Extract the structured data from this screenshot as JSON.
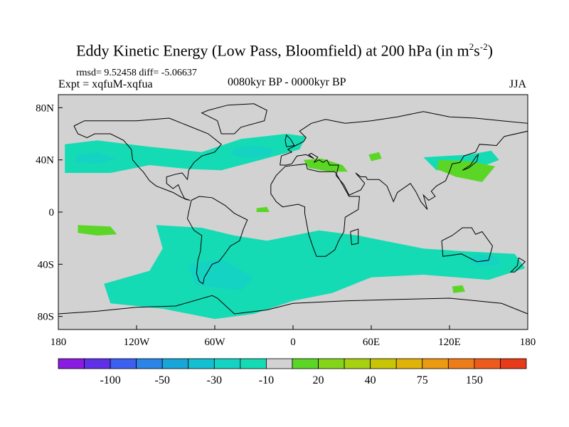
{
  "title": {
    "main": "Eddy Kinetic Energy (Low Pass, Bloomfield) at 200 hPa (in m",
    "unit_m_exp": "2",
    "unit_s": "s",
    "unit_s_exp": "-2",
    "close": ")"
  },
  "stats_line": "rmsd= 9.52458 diff= -5.06637",
  "experiment": "Expt = xqfuM-xqfua",
  "period": "0080kyr BP - 0000kyr BP",
  "season": "JJA",
  "chart_data": {
    "type": "heatmap",
    "projection": "cylindrical equidistant",
    "x_ticks": [
      "180",
      "120W",
      "60W",
      "0",
      "60E",
      "120E",
      "180"
    ],
    "x_tick_values": [
      -180,
      -120,
      -60,
      0,
      60,
      120,
      180
    ],
    "y_ticks": [
      "80N",
      "40N",
      "0",
      "40S",
      "80S"
    ],
    "y_tick_values": [
      80,
      40,
      0,
      -40,
      -80
    ],
    "xlim": [
      -180,
      180
    ],
    "ylim": [
      -90,
      90
    ],
    "colorbar": {
      "labels": [
        "-100",
        "-50",
        "-30",
        "-10",
        "20",
        "40",
        "75",
        "150"
      ],
      "label_after_box": [
        2,
        4,
        6,
        8,
        10,
        12,
        14,
        16
      ],
      "colors": [
        "#8a1be0",
        "#6030e8",
        "#3c5ff0",
        "#2a85e6",
        "#18a6d8",
        "#12c0d2",
        "#14d3c3",
        "#15dbb4",
        "#d2d2d2",
        "#5cd626",
        "#84d51a",
        "#a6d010",
        "#c8c506",
        "#e1b308",
        "#eb9a12",
        "#ee7c18",
        "#ec5a1c",
        "#e63a18"
      ]
    },
    "background_value_color": "#d2d2d2",
    "regions": [
      {
        "name": "north-atlantic-band",
        "level_color": "#15dbb4",
        "lon_lat": [
          [
            -175,
            52
          ],
          [
            -150,
            55
          ],
          [
            -110,
            50
          ],
          [
            -70,
            46
          ],
          [
            -40,
            56
          ],
          [
            -5,
            60
          ],
          [
            10,
            58
          ],
          [
            5,
            48
          ],
          [
            -25,
            40
          ],
          [
            -55,
            32
          ],
          [
            -80,
            33
          ],
          [
            -110,
            36
          ],
          [
            -140,
            30
          ],
          [
            -175,
            30
          ]
        ]
      },
      {
        "name": "north-atlantic-core",
        "level_color": "#14d3c3",
        "lon_lat": [
          [
            -45,
            49
          ],
          [
            -30,
            51
          ],
          [
            -15,
            49
          ],
          [
            -18,
            43
          ],
          [
            -35,
            41
          ],
          [
            -48,
            44
          ]
        ]
      },
      {
        "name": "north-pacific-core",
        "level_color": "#14d3c3",
        "lon_lat": [
          [
            -165,
            44
          ],
          [
            -150,
            46
          ],
          [
            -135,
            41
          ],
          [
            -150,
            37
          ],
          [
            -168,
            38
          ]
        ]
      },
      {
        "name": "mediterranean-positive",
        "level_color": "#5cd626",
        "lon_lat": [
          [
            8,
            40
          ],
          [
            22,
            41
          ],
          [
            38,
            36
          ],
          [
            42,
            31
          ],
          [
            28,
            31
          ],
          [
            12,
            34
          ]
        ]
      },
      {
        "name": "east-asia-band",
        "level_color": "#15dbb4",
        "lon_lat": [
          [
            100,
            42
          ],
          [
            135,
            44
          ],
          [
            152,
            47
          ],
          [
            158,
            40
          ],
          [
            140,
            33
          ],
          [
            110,
            32
          ]
        ]
      },
      {
        "name": "east-asia-positive",
        "level_color": "#5cd626",
        "lon_lat": [
          [
            112,
            40
          ],
          [
            135,
            39
          ],
          [
            155,
            35
          ],
          [
            145,
            23
          ],
          [
            125,
            27
          ],
          [
            110,
            33
          ]
        ]
      },
      {
        "name": "central-asia-positive",
        "level_color": "#5cd626",
        "lon_lat": [
          [
            58,
            44
          ],
          [
            66,
            46
          ],
          [
            68,
            41
          ],
          [
            60,
            39
          ]
        ]
      },
      {
        "name": "equatorial-atlantic-positive",
        "level_color": "#5cd626",
        "lon_lat": [
          [
            -28,
            3
          ],
          [
            -20,
            4
          ],
          [
            -18,
            0
          ],
          -0.5,
          [
            -28,
            0
          ]
        ]
      },
      {
        "name": "south-pacific-positive",
        "level_color": "#5cd626",
        "lon_lat": [
          [
            -165,
            -10
          ],
          [
            -140,
            -11
          ],
          [
            -135,
            -17
          ],
          [
            -150,
            -18
          ],
          [
            -165,
            -16
          ]
        ]
      },
      {
        "name": "southern-hemisphere-band",
        "level_color": "#15dbb4",
        "lon_lat": [
          [
            -105,
            -10
          ],
          [
            -70,
            -12
          ],
          [
            -45,
            -18
          ],
          [
            -20,
            -22
          ],
          [
            20,
            -14
          ],
          [
            50,
            -18
          ],
          [
            100,
            -28
          ],
          [
            130,
            -30
          ],
          [
            170,
            -32
          ],
          [
            178,
            -43
          ],
          [
            150,
            -52
          ],
          [
            100,
            -48
          ],
          [
            60,
            -50
          ],
          [
            30,
            -62
          ],
          [
            0,
            -68
          ],
          [
            -30,
            -78
          ],
          [
            -60,
            -82
          ],
          [
            -100,
            -74
          ],
          [
            -140,
            -70
          ],
          [
            -145,
            -55
          ],
          [
            -110,
            -45
          ],
          [
            -100,
            -28
          ]
        ]
      },
      {
        "name": "south-atlantic-core",
        "level_color": "#14d3c3",
        "lon_lat": [
          [
            -80,
            -40
          ],
          [
            -55,
            -36
          ],
          [
            -30,
            -50
          ],
          [
            -40,
            -60
          ],
          [
            -75,
            -56
          ]
        ]
      },
      {
        "name": "australia-core",
        "level_color": "#14d3c3",
        "lon_lat": [
          [
            140,
            -32
          ],
          [
            155,
            -34
          ],
          [
            160,
            -40
          ],
          [
            145,
            -42
          ],
          [
            135,
            -38
          ]
        ]
      },
      {
        "name": "southern-ocean-positive",
        "level_color": "#5cd626",
        "lon_lat": [
          [
            122,
            -57
          ],
          [
            130,
            -56
          ],
          [
            132,
            -61
          ],
          [
            123,
            -62
          ]
        ]
      }
    ]
  }
}
